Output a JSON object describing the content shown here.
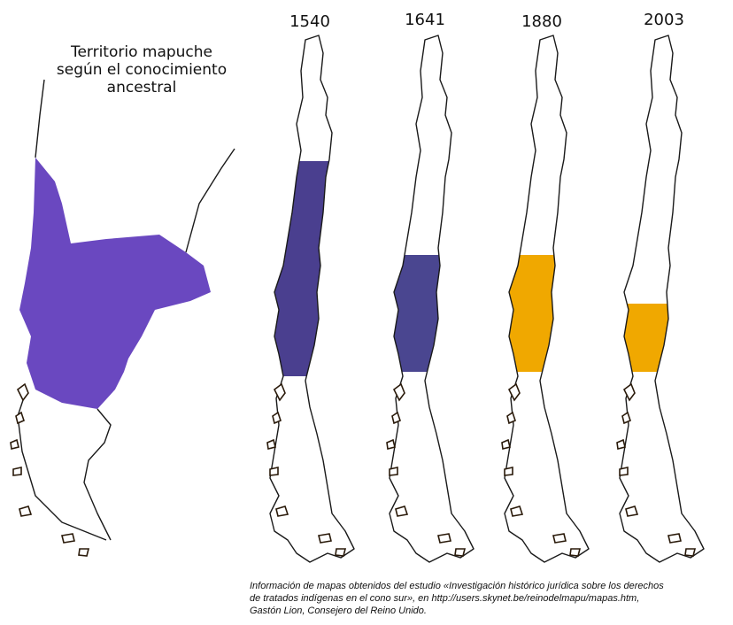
{
  "title": {
    "lines": [
      "Territorio mapuche",
      "según el conocimiento",
      "ancestral"
    ]
  },
  "maps": [
    {
      "year": "1540"
    },
    {
      "year": "1641"
    },
    {
      "year": "1880"
    },
    {
      "year": "2003"
    }
  ],
  "caption": {
    "lines": [
      "Información de mapas obtenidos del estudio «Investigación histórico jurídica sobre los derechos",
      "de tratados indígenas en el cono sur», en http://users.skynet.be/reinodelmapu/mapas.htm,",
      "Gastón Lion, Consejero del Reino Unido."
    ]
  }
}
